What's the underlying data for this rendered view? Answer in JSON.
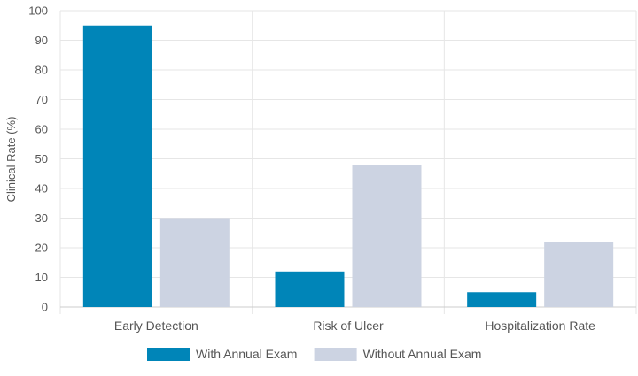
{
  "chart_data": {
    "type": "bar",
    "categories": [
      "Early Detection",
      "Risk of Ulcer",
      "Hospitalization Rate"
    ],
    "series": [
      {
        "name": "With Annual Exam",
        "values": [
          95,
          12,
          5
        ],
        "color": "#0085b8"
      },
      {
        "name": "Without Annual Exam",
        "values": [
          30,
          48,
          22
        ],
        "color": "#ccd3e2"
      }
    ],
    "title": "",
    "xlabel": "",
    "ylabel": "Clinical Rate (%)",
    "ylim": [
      0,
      100
    ],
    "yticks": [
      0,
      10,
      20,
      30,
      40,
      50,
      60,
      70,
      80,
      90,
      100
    ],
    "grid": true,
    "legend_position": "bottom"
  }
}
